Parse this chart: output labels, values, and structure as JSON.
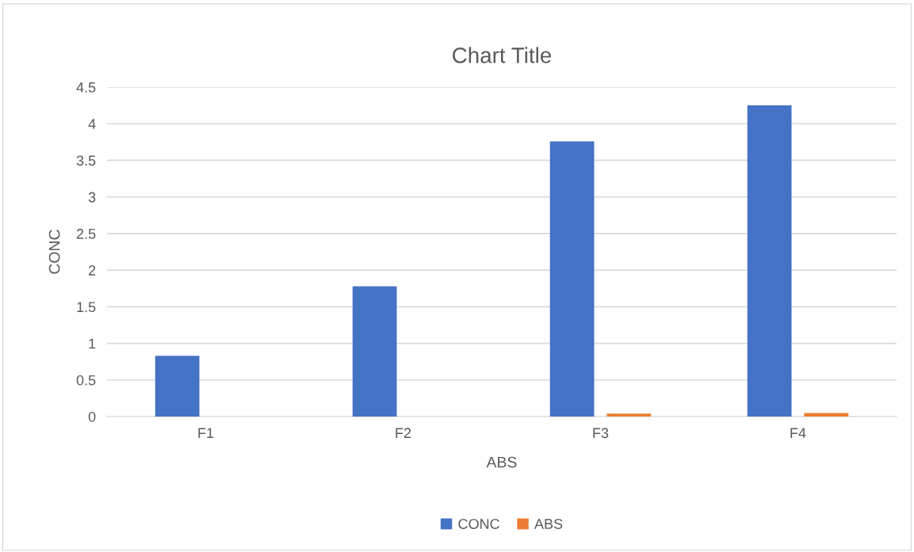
{
  "chart_data": {
    "type": "bar",
    "title": "Chart Title",
    "xlabel": "ABS",
    "ylabel": "CONC",
    "categories": [
      "F1",
      "F2",
      "F3",
      "F4"
    ],
    "series": [
      {
        "name": "CONC",
        "color": "#4472c4",
        "values": [
          0.83,
          1.78,
          3.76,
          4.25
        ]
      },
      {
        "name": "ABS",
        "color": "#ed7d31",
        "values": [
          0,
          0,
          0.04,
          0.05
        ]
      }
    ],
    "ylim": [
      0,
      4.5
    ],
    "yticks": [
      0,
      {
        "value": 0.5,
        "label": "0.5"
      },
      1,
      {
        "value": 1.5,
        "label": "1.5"
      },
      2,
      {
        "value": 2.5,
        "label": "2.5"
      },
      3,
      {
        "value": 3.5,
        "label": "3.5"
      },
      4,
      {
        "value": 4.5,
        "label": "4.5"
      }
    ],
    "grid": "y",
    "legend": "bottom"
  }
}
